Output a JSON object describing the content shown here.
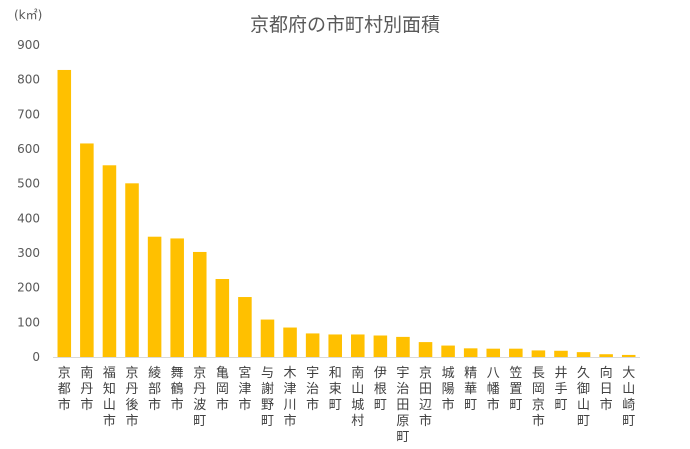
{
  "chart_data": {
    "type": "bar",
    "title": "京都府の市町村別面積",
    "unit_label": "(k㎡)",
    "ylim": [
      0,
      900
    ],
    "yticks": [
      "0",
      "100",
      "200",
      "300",
      "400",
      "500",
      "600",
      "700",
      "800",
      "900"
    ],
    "grid": false,
    "bar_color": "#FFC000",
    "categories": [
      "京都市",
      "南丹市",
      "福知山市",
      "京丹後市",
      "綾部市",
      "舞鶴市",
      "京丹波町",
      "亀岡市",
      "宮津市",
      "与謝野町",
      "木津川市",
      "宇治市",
      "和束町",
      "南山城村",
      "伊根町",
      "宇治田原町",
      "京田辺市",
      "城陽市",
      "精華町",
      "八幡市",
      "笠置町",
      "長岡京市",
      "井手町",
      "久御山町",
      "向日市",
      "大山崎町"
    ],
    "values": [
      828,
      616,
      553,
      501,
      347,
      342,
      303,
      225,
      173,
      108,
      85,
      68,
      65,
      65,
      62,
      58,
      43,
      33,
      25,
      24,
      24,
      19,
      18,
      14,
      8,
      6
    ]
  }
}
